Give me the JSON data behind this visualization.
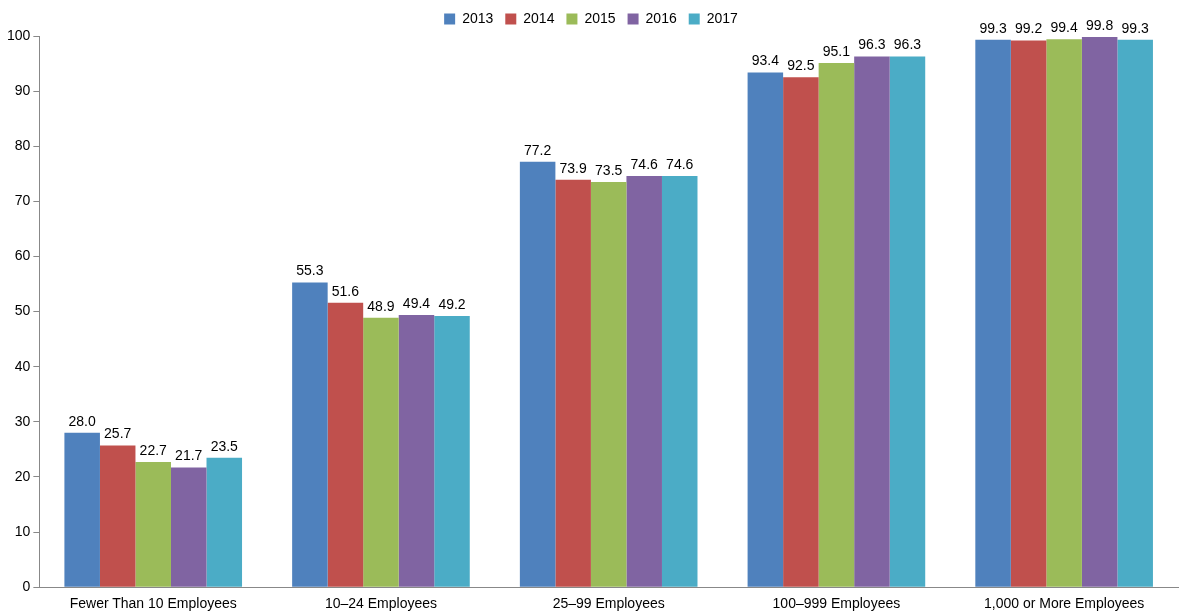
{
  "chart_data": {
    "type": "bar",
    "categories": [
      "Fewer Than 10 Employees",
      "10–24 Employees",
      "25–99 Employees",
      "100–999 Employees",
      "1,000 or More Employees"
    ],
    "series": [
      {
        "name": "2013",
        "color": "#4f81bd",
        "values": [
          28.0,
          55.3,
          77.2,
          93.4,
          99.3
        ],
        "value_labels": [
          "28.0",
          "55.3",
          "77.2",
          "93.4",
          "99.3"
        ]
      },
      {
        "name": "2014",
        "color": "#c0504d",
        "values": [
          25.7,
          51.6,
          73.9,
          92.5,
          99.2
        ],
        "value_labels": [
          "25.7",
          "51.6",
          "73.9",
          "92.5",
          "99.2"
        ]
      },
      {
        "name": "2015",
        "color": "#9bbb59",
        "values": [
          22.7,
          48.9,
          73.5,
          95.1,
          99.4
        ],
        "value_labels": [
          "22.7",
          "48.9",
          "73.5",
          "95.1",
          "99.4"
        ]
      },
      {
        "name": "2016",
        "color": "#8064a2",
        "values": [
          21.7,
          49.4,
          74.6,
          96.3,
          99.8
        ],
        "value_labels": [
          "21.7",
          "49.4",
          "74.6",
          "96.3",
          "99.8"
        ]
      },
      {
        "name": "2017",
        "color": "#4bacc6",
        "values": [
          23.5,
          49.2,
          74.6,
          96.3,
          99.3
        ],
        "value_labels": [
          "23.5",
          "49.2",
          "74.6",
          "96.3",
          "99.3"
        ]
      }
    ],
    "ylim": [
      0,
      100
    ],
    "yticks": [
      0,
      10,
      20,
      30,
      40,
      50,
      60,
      70,
      80,
      90,
      100
    ],
    "grid": false,
    "legend": "top"
  }
}
